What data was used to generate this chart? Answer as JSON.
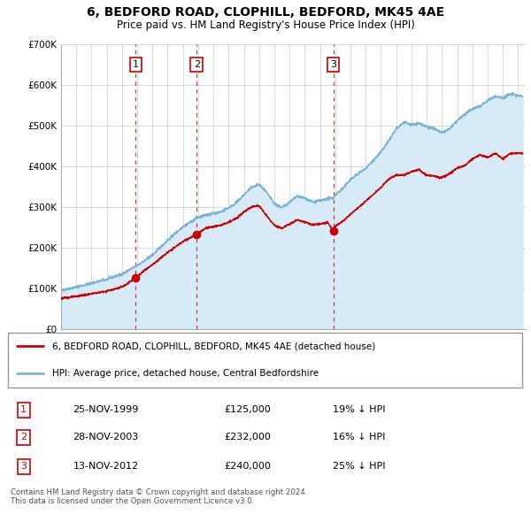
{
  "title": "6, BEDFORD ROAD, CLOPHILL, BEDFORD, MK45 4AE",
  "subtitle": "Price paid vs. HM Land Registry's House Price Index (HPI)",
  "legend_line1": "6, BEDFORD ROAD, CLOPHILL, BEDFORD, MK45 4AE (detached house)",
  "legend_line2": "HPI: Average price, detached house, Central Bedfordshire",
  "footnote1": "Contains HM Land Registry data © Crown copyright and database right 2024.",
  "footnote2": "This data is licensed under the Open Government Licence v3.0.",
  "sales": [
    {
      "label": "1",
      "date_str": "25-NOV-1999",
      "date_dec": 1999.9,
      "price": 125000,
      "note": "19% ↓ HPI"
    },
    {
      "label": "2",
      "date_str": "28-NOV-2003",
      "date_dec": 2003.9,
      "price": 232000,
      "note": "16% ↓ HPI"
    },
    {
      "label": "3",
      "date_str": "13-NOV-2012",
      "date_dec": 2012.87,
      "price": 240000,
      "note": "25% ↓ HPI"
    }
  ],
  "red_color": "#cc0000",
  "blue_color": "#7ab3d4",
  "blue_fill": "#d6eaf8",
  "background_color": "#ffffff",
  "grid_color": "#cccccc",
  "ylim": [
    0,
    700000
  ],
  "xlim_start": 1995.0,
  "xlim_end": 2025.5,
  "yticks": [
    0,
    100000,
    200000,
    300000,
    400000,
    500000,
    600000,
    700000
  ],
  "ytick_labels": [
    "£0",
    "£100K",
    "£200K",
    "£300K",
    "£400K",
    "£500K",
    "£600K",
    "£700K"
  ],
  "xticks": [
    1995,
    1996,
    1997,
    1998,
    1999,
    2000,
    2001,
    2002,
    2003,
    2004,
    2005,
    2006,
    2007,
    2008,
    2009,
    2010,
    2011,
    2012,
    2013,
    2014,
    2015,
    2016,
    2017,
    2018,
    2019,
    2020,
    2021,
    2022,
    2023,
    2024,
    2025
  ]
}
